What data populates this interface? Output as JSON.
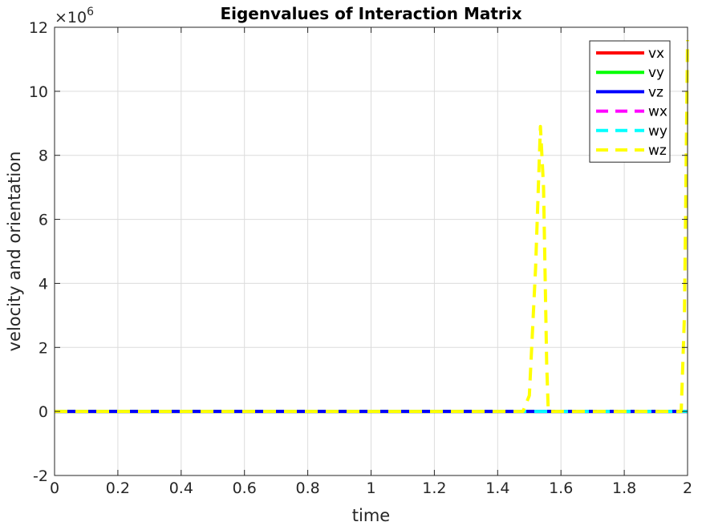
{
  "chart_data": {
    "type": "line",
    "title": "Eigenvalues of Interaction Matrix",
    "xlabel": "time",
    "ylabel": "velocity and orientation",
    "y_exponent_label": "×10",
    "y_exponent_power": "6",
    "xlim": [
      0,
      2
    ],
    "ylim": [
      -2,
      12
    ],
    "y_scale_factor": 1000000,
    "grid": true,
    "legend_position": "top-right",
    "x_ticks": [
      "0",
      "0.2",
      "0.4",
      "0.6",
      "0.8",
      "1",
      "1.2",
      "1.4",
      "1.6",
      "1.8",
      "2"
    ],
    "y_ticks": [
      "-2",
      "0",
      "2",
      "4",
      "6",
      "8",
      "10",
      "12"
    ],
    "series": [
      {
        "name": "vx",
        "color": "#ff0000",
        "style": "solid",
        "x": [
          0,
          2
        ],
        "y": [
          0,
          0
        ]
      },
      {
        "name": "vy",
        "color": "#00ff00",
        "style": "solid",
        "x": [
          0,
          2
        ],
        "y": [
          0,
          0
        ]
      },
      {
        "name": "vz",
        "color": "#0000ff",
        "style": "solid",
        "x": [
          0,
          2
        ],
        "y": [
          0,
          0
        ]
      },
      {
        "name": "wx",
        "color": "#ff00ff",
        "style": "dashed",
        "x": [
          0,
          2
        ],
        "y": [
          0,
          0
        ]
      },
      {
        "name": "wy",
        "color": "#00ffff",
        "style": "dashed",
        "x": [
          0,
          1.55,
          1.6,
          2
        ],
        "y": [
          0,
          0,
          0,
          0
        ]
      },
      {
        "name": "wz",
        "color": "#ffff00",
        "style": "dashed",
        "x": [
          0,
          1.48,
          1.5,
          1.52,
          1.535,
          1.545,
          1.555,
          1.56,
          1.6,
          1.7,
          1.8,
          1.9,
          1.98,
          1.99,
          2.0
        ],
        "y": [
          0,
          0,
          0.5,
          4.5,
          8.9,
          7.0,
          1.5,
          0,
          0,
          0,
          0,
          0,
          0,
          3.0,
          11.6
        ]
      }
    ]
  }
}
